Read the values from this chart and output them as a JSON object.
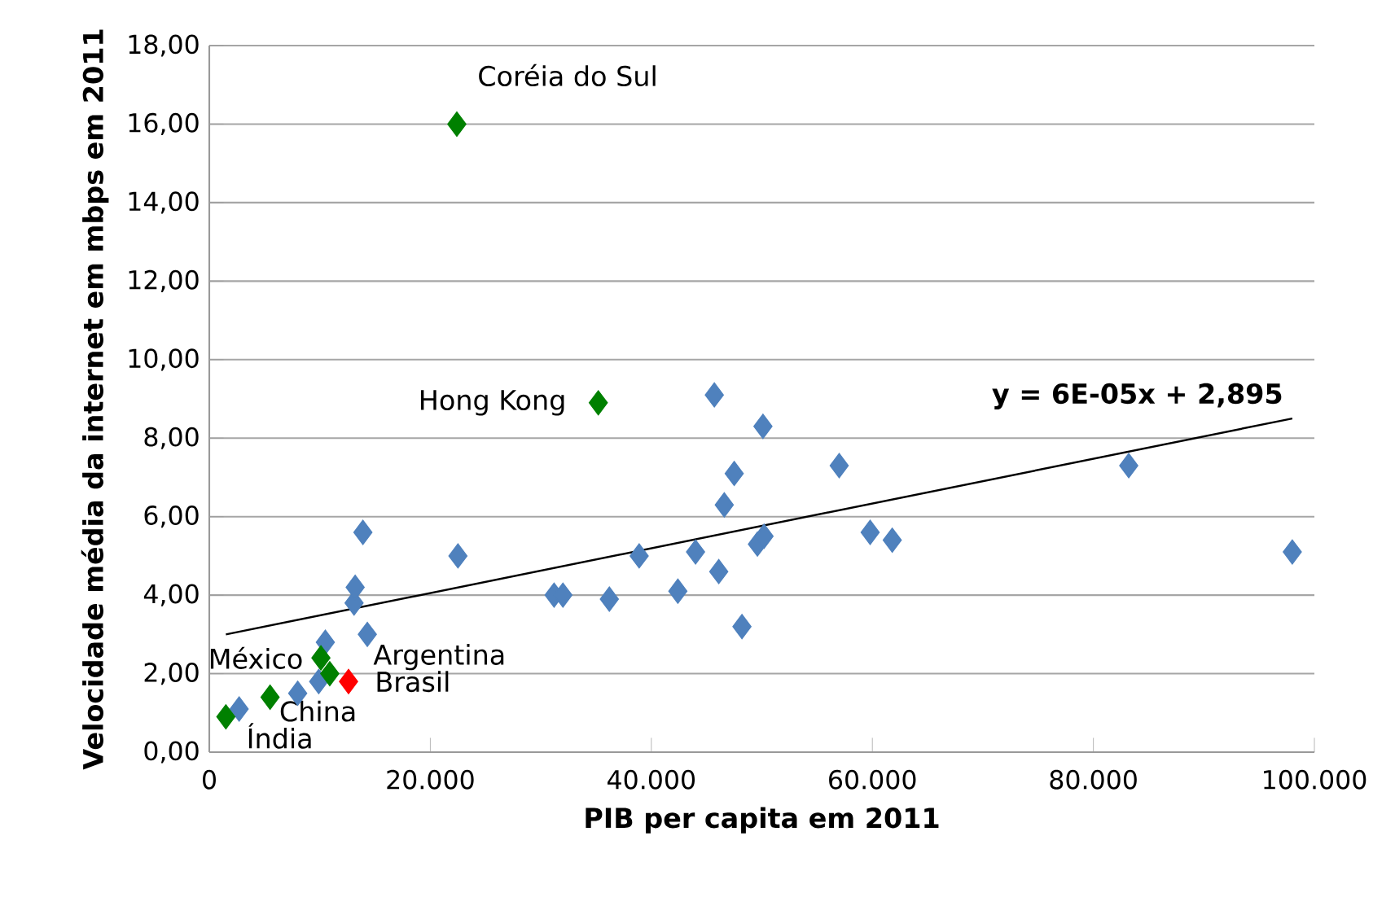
{
  "chart_data": {
    "type": "scatter",
    "xlabel": "PIB per capita em 2011",
    "ylabel": "Velocidade média da internet em mbps em 2011",
    "xlim": [
      0,
      100000
    ],
    "xticks": [
      {
        "value": 0,
        "label": "0"
      },
      {
        "value": 20000,
        "label": "20.000"
      },
      {
        "value": 40000,
        "label": "40.000"
      },
      {
        "value": 60000,
        "label": "60.000"
      },
      {
        "value": 80000,
        "label": "80.000"
      },
      {
        "value": 100000,
        "label": "100.000"
      }
    ],
    "ylim": [
      0,
      18
    ],
    "yticks": [
      {
        "value": 0,
        "label": "0,00"
      },
      {
        "value": 2,
        "label": "2,00"
      },
      {
        "value": 4,
        "label": "4,00"
      },
      {
        "value": 6,
        "label": "6,00"
      },
      {
        "value": 8,
        "label": "8,00"
      },
      {
        "value": 10,
        "label": "10,00"
      },
      {
        "value": 12,
        "label": "12,00"
      },
      {
        "value": 14,
        "label": "14,00"
      },
      {
        "value": 16,
        "label": "16,00"
      },
      {
        "value": 18,
        "label": "18,00"
      }
    ],
    "grid": "y",
    "marker": "diamond",
    "series": [
      {
        "color": "#4f81bd",
        "x": [
          2700,
          8000,
          9900,
          10500,
          13100,
          13200,
          13900,
          14300,
          22500,
          31200,
          32000,
          36200,
          38900,
          42400,
          44000,
          45700,
          46100,
          46600,
          47500,
          48200,
          49600,
          50100,
          50200,
          57000,
          59800,
          61800,
          83200,
          98000
        ],
        "values": [
          1.1,
          1.5,
          1.8,
          2.8,
          3.8,
          4.2,
          5.6,
          3.0,
          5.0,
          4.0,
          4.0,
          3.9,
          5.0,
          4.1,
          5.1,
          9.1,
          4.6,
          6.3,
          7.1,
          3.2,
          5.3,
          8.3,
          5.5,
          7.3,
          5.6,
          5.4,
          7.3,
          5.1
        ]
      },
      {
        "color": "#008000",
        "x": [
          22400,
          35200,
          10100,
          10900,
          5500,
          1500
        ],
        "values": [
          16.0,
          8.9,
          2.4,
          2.0,
          1.4,
          0.9
        ]
      },
      {
        "color": "#ff0000",
        "x": [
          12600
        ],
        "values": [
          1.8
        ]
      },
      {
        "type": "line",
        "name": "y = 6E-05x + 2,895",
        "color": "#000000",
        "marker": "none",
        "x": [
          1500,
          98000
        ],
        "values": [
          3.0,
          8.5
        ]
      }
    ],
    "annotations": [
      {
        "text": "Coréia do Sul",
        "x": 22400,
        "y": 16.0
      },
      {
        "text": "Hong Kong",
        "x": 35200,
        "y": 8.9
      },
      {
        "text": "México",
        "x": 10100,
        "y": 2.4
      },
      {
        "text": "Argentina",
        "x": 10900,
        "y": 2.0
      },
      {
        "text": "Brasil",
        "x": 12600,
        "y": 1.8
      },
      {
        "text": "China",
        "x": 5500,
        "y": 1.4
      },
      {
        "text": "Índia",
        "x": 1500,
        "y": 0.9
      }
    ]
  }
}
